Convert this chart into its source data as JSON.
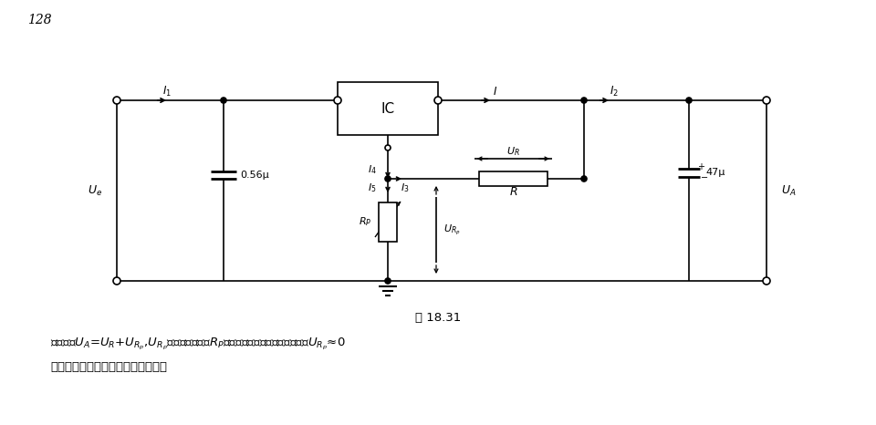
{
  "bg_color": "#ffffff",
  "line_color": "#000000",
  "lw": 1.2,
  "page_num": "128",
  "fig_label": "图 18.31",
  "caption1": "输出电压$U_A$=$U_R$+$U_{R_p}$,$U_{R_p}$的大小由电位器$R_P$调节。为有最大调节能力，应使$U_{R_p}$≈0",
  "caption2": "时集成电路输入电压不超过允许值。"
}
